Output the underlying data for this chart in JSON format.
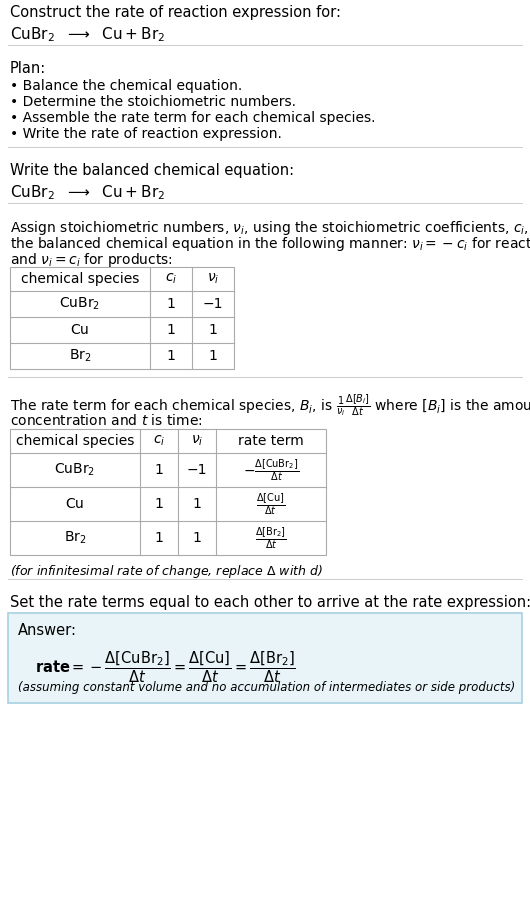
{
  "bg_color": "#ffffff",
  "text_color": "#000000",
  "title_line1": "Construct the rate of reaction expression for:",
  "section1_header": "Plan:",
  "section1_bullets": [
    "• Balance the chemical equation.",
    "• Determine the stoichiometric numbers.",
    "• Assemble the rate term for each chemical species.",
    "• Write the rate of reaction expression."
  ],
  "section2_header": "Write the balanced chemical equation:",
  "table1_headers": [
    "chemical species",
    "c_i",
    "v_i"
  ],
  "table1_rows": [
    [
      "CuBr2",
      "1",
      "−1"
    ],
    [
      "Cu",
      "1",
      "1"
    ],
    [
      "Br2",
      "1",
      "1"
    ]
  ],
  "table2_headers": [
    "chemical species",
    "c_i",
    "v_i",
    "rate term"
  ],
  "table2_rows": [
    [
      "CuBr2",
      "1",
      "−1"
    ],
    [
      "Cu",
      "1",
      "1"
    ],
    [
      "Br2",
      "1",
      "1"
    ]
  ],
  "answer_bg": "#e8f4f8",
  "answer_border": "#a8d0e0",
  "line_color": "#cccccc"
}
